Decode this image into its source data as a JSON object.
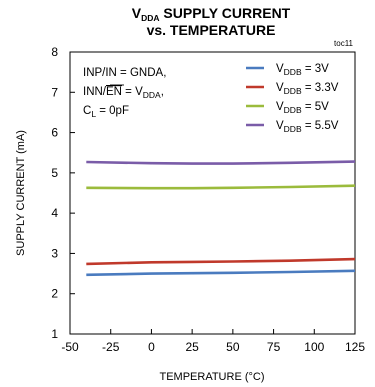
{
  "chart_data": {
    "type": "line",
    "title": {
      "line1_main": "V",
      "line1_sub": "DDA",
      "line1_rest": " SUPPLY CURRENT",
      "line2": "vs. TEMPERATURE"
    },
    "figure_tag": "toc11",
    "xlabel": "TEMPERATURE (°C)",
    "ylabel": "SUPPLY CURRENT (mA)",
    "xlim": [
      -50,
      125
    ],
    "ylim": [
      1,
      8
    ],
    "x_ticks": [
      "-50",
      "-25",
      "0",
      "25",
      "50",
      "75",
      "100",
      "125"
    ],
    "y_ticks": [
      "1",
      "2",
      "3",
      "4",
      "5",
      "6",
      "7",
      "8"
    ],
    "grid": false,
    "legend_position": "top-right",
    "conditions": {
      "line1": "INP/IN = GNDA,",
      "line2_pre": "INN/",
      "line2_overbar": "EN",
      "line2_mid": " = V",
      "line2_sub": "DDA",
      "line2_post": ",",
      "line3_main": "C",
      "line3_sub": "L",
      "line3_post": " = 0pF"
    },
    "x": [
      -40,
      0,
      25,
      50,
      85,
      125
    ],
    "series": [
      {
        "name": {
          "main": "V",
          "sub": "DDB",
          "rest": " = 3V"
        },
        "color": "#4a7bbf",
        "values": [
          2.47,
          2.5,
          2.51,
          2.52,
          2.54,
          2.57
        ]
      },
      {
        "name": {
          "main": "V",
          "sub": "DDB",
          "rest": " = 3.3V"
        },
        "color": "#c0392b",
        "values": [
          2.74,
          2.78,
          2.79,
          2.8,
          2.82,
          2.86
        ]
      },
      {
        "name": {
          "main": "V",
          "sub": "DDB",
          "rest": " = 5V"
        },
        "color": "#9bbb3c",
        "values": [
          4.63,
          4.62,
          4.62,
          4.63,
          4.65,
          4.68
        ]
      },
      {
        "name": {
          "main": "V",
          "sub": "DDB",
          "rest": " = 5.5V"
        },
        "color": "#7a5ca8",
        "values": [
          5.27,
          5.24,
          5.23,
          5.23,
          5.25,
          5.28
        ]
      }
    ]
  }
}
